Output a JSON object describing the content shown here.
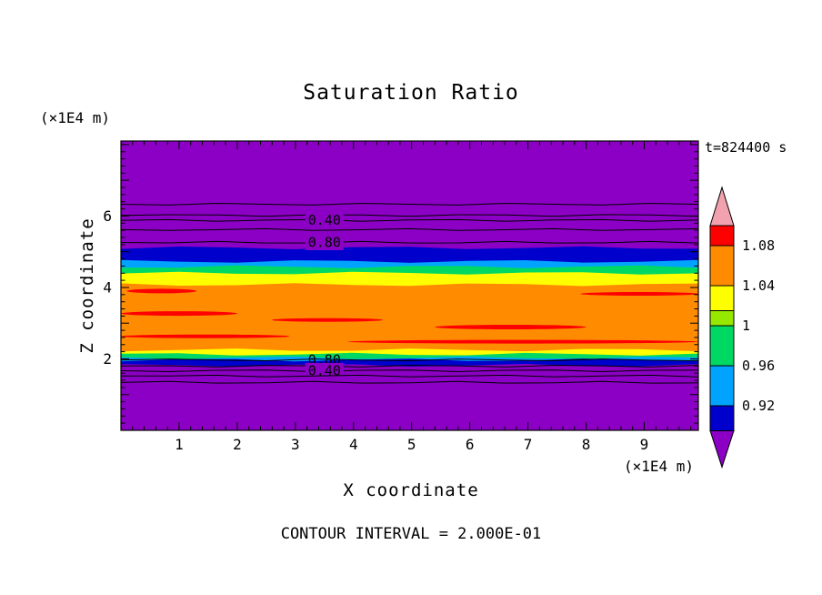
{
  "chart_data": {
    "type": "heatmap",
    "title": "Saturation Ratio",
    "time_annotation": "t=824400 s",
    "xlabel": "X coordinate",
    "ylabel": "Z coordinate",
    "x_unit_label": "(×1E4 m)",
    "y_unit_label": "(×1E4 m)",
    "contour_interval_note": "CONTOUR INTERVAL = 2.000E-01",
    "xlim": [
      0,
      9.93
    ],
    "ylim": [
      0,
      8.1
    ],
    "x_ticks": [
      1,
      2,
      3,
      4,
      5,
      6,
      7,
      8,
      9
    ],
    "y_ticks": [
      2,
      4,
      6
    ],
    "minor_tick_step": 0.2,
    "grid": false,
    "legend_position": "right-colorbar",
    "colors": {
      "purple": "#8B00C4",
      "navy": "#0000CC",
      "lightblue": "#00A4FF",
      "green": "#00D864",
      "chartreuse": "#96E800",
      "yellow": "#FFFF00",
      "orange": "#FF8C00",
      "red": "#FF0000",
      "pink": "#F2A2AE",
      "line": "#000000"
    },
    "bands": [
      {
        "color": "purple",
        "top": 8.1
      },
      {
        "color": "navy",
        "top": 5.11
      },
      {
        "color": "lightblue",
        "top": 4.73
      },
      {
        "color": "green",
        "top": 4.58
      },
      {
        "color": "yellow",
        "top": 4.4
      },
      {
        "color": "orange",
        "top": 4.08
      },
      {
        "color": "yellow",
        "top": 2.25
      },
      {
        "color": "green",
        "top": 2.13
      },
      {
        "color": "lightblue",
        "top": 2.03
      },
      {
        "color": "navy",
        "top": 1.97
      },
      {
        "color": "purple",
        "top": 1.82
      }
    ],
    "red_streaks": [
      {
        "x1": 0.1,
        "x2": 1.3,
        "z": 3.9,
        "h": 5
      },
      {
        "x1": 7.9,
        "x2": 9.93,
        "z": 3.82,
        "h": 4
      },
      {
        "x1": 0.0,
        "x2": 2.0,
        "z": 3.27,
        "h": 5
      },
      {
        "x1": 2.6,
        "x2": 4.5,
        "z": 3.09,
        "h": 4
      },
      {
        "x1": 5.4,
        "x2": 8.0,
        "z": 2.89,
        "h": 5
      },
      {
        "x1": 0.0,
        "x2": 2.9,
        "z": 2.63,
        "h": 4
      },
      {
        "x1": 3.9,
        "x2": 9.93,
        "z": 2.48,
        "h": 4
      }
    ],
    "contour_label_x": 3.5,
    "contour_lines": [
      {
        "z": 6.33
      },
      {
        "z": 6.02
      },
      {
        "z": 5.88,
        "label": "0.40",
        "label_bg": "purple"
      },
      {
        "z": 5.62
      },
      {
        "z": 5.26,
        "label": "0.80",
        "label_bg": "purple"
      },
      {
        "z": 1.97,
        "label": "0.80"
      },
      {
        "z": 1.8
      },
      {
        "z": 1.67,
        "label": "0.40",
        "label_bg": "purple"
      },
      {
        "z": 1.52
      },
      {
        "z": 1.34
      }
    ],
    "colorbar": {
      "top_value": 1.1,
      "bottom_value": 0.895,
      "top_spike_color": "pink",
      "bottom_spike_color": "purple",
      "segments": [
        {
          "color": "red",
          "from": 1.08,
          "to": 1.1
        },
        {
          "color": "orange",
          "from": 1.04,
          "to": 1.08
        },
        {
          "color": "yellow",
          "from": 1.015,
          "to": 1.04
        },
        {
          "color": "chartreuse",
          "from": 1.0,
          "to": 1.015
        },
        {
          "color": "green",
          "from": 0.96,
          "to": 1.0
        },
        {
          "color": "lightblue",
          "from": 0.92,
          "to": 0.96
        },
        {
          "color": "navy",
          "from": 0.895,
          "to": 0.92
        }
      ],
      "labels": [
        {
          "value": 1.08,
          "text": "1.08"
        },
        {
          "value": 1.04,
          "text": "1.04"
        },
        {
          "value": 1.0,
          "text": "1"
        },
        {
          "value": 0.96,
          "text": "0.96"
        },
        {
          "value": 0.92,
          "text": "0.92"
        }
      ]
    }
  }
}
